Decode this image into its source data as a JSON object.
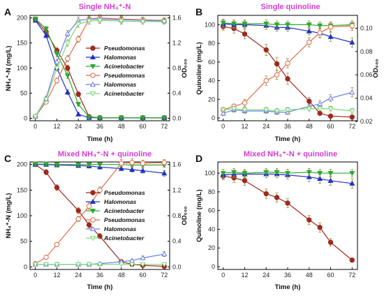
{
  "colors": {
    "pseudomonas": "#a0281e",
    "halomonas": "#1f32c8",
    "acinetobacter": "#2ea82e",
    "pseudomonas_od": "#e06a4a",
    "halomonas_od": "#6b7fe6",
    "acinetobacter_od": "#7ad878",
    "title": "#d63ad6",
    "error_bar": "#9a8a3a"
  },
  "chart_data": [
    {
      "panel": "A",
      "type": "line",
      "title": "Single NH₄⁺-N",
      "xlabel": "Time (h)",
      "ylabel": "NH₄⁺-N (mg/L)",
      "y2label": "OD₆₀₀",
      "xlim": [
        -3,
        75
      ],
      "ylim": [
        -5,
        205
      ],
      "y2lim": [
        -0.04,
        1.64
      ],
      "xticks": [
        0,
        12,
        24,
        36,
        48,
        60,
        72
      ],
      "yticks": [
        0,
        50,
        100,
        150,
        200
      ],
      "y2ticks": [
        0.0,
        0.4,
        0.8,
        1.2,
        1.6
      ],
      "legend_position": "right",
      "series": [
        {
          "name": "Pseudomonas",
          "axis": "left",
          "marker": "circle",
          "filled": true,
          "color": "pseudomonas",
          "x": [
            0,
            6,
            12,
            18,
            24,
            30,
            36,
            48,
            60,
            72
          ],
          "y": [
            197,
            172,
            135,
            100,
            48,
            3,
            1,
            1,
            1,
            1
          ],
          "err": [
            4,
            5,
            6,
            6,
            5,
            2,
            1,
            1,
            1,
            1
          ]
        },
        {
          "name": "Halomonas",
          "axis": "left",
          "marker": "triangle-up",
          "filled": true,
          "color": "halomonas",
          "x": [
            0,
            6,
            12,
            18,
            24,
            30,
            36,
            48,
            60,
            72
          ],
          "y": [
            195,
            165,
            100,
            52,
            8,
            1,
            1,
            1,
            1,
            1
          ],
          "err": [
            4,
            5,
            6,
            5,
            3,
            1,
            1,
            1,
            1,
            1
          ]
        },
        {
          "name": "Acinetobacter",
          "axis": "left",
          "marker": "triangle-down",
          "filled": true,
          "color": "acinetobacter",
          "x": [
            0,
            6,
            12,
            18,
            24,
            30,
            36,
            48,
            60,
            72
          ],
          "y": [
            198,
            178,
            128,
            85,
            28,
            2,
            1,
            1,
            1,
            1
          ],
          "err": [
            4,
            5,
            6,
            6,
            4,
            1,
            1,
            1,
            1,
            1
          ]
        },
        {
          "name": "Pseudomonas",
          "axis": "right",
          "marker": "circle",
          "filled": false,
          "color": "pseudomonas_od",
          "x": [
            0,
            6,
            12,
            18,
            24,
            30,
            36,
            48,
            60,
            72
          ],
          "y": [
            0.03,
            0.26,
            0.6,
            0.95,
            1.26,
            1.58,
            1.6,
            1.58,
            1.57,
            1.56
          ],
          "err": [
            0.01,
            0.03,
            0.04,
            0.05,
            0.05,
            0.05,
            0.05,
            0.05,
            0.04,
            0.04
          ]
        },
        {
          "name": "Halomonas",
          "axis": "right",
          "marker": "triangle-up",
          "filled": false,
          "color": "halomonas_od",
          "x": [
            0,
            6,
            12,
            18,
            24,
            30,
            36,
            48,
            60,
            72
          ],
          "y": [
            0.03,
            0.32,
            0.9,
            1.35,
            1.56,
            1.58,
            1.58,
            1.57,
            1.56,
            1.55
          ],
          "err": [
            0.01,
            0.03,
            0.04,
            0.05,
            0.05,
            0.05,
            0.05,
            0.05,
            0.04,
            0.04
          ]
        },
        {
          "name": "Acinetobacter",
          "axis": "right",
          "marker": "triangle-down",
          "filled": false,
          "color": "acinetobacter_od",
          "x": [
            0,
            6,
            12,
            18,
            24,
            30,
            36,
            48,
            60,
            72
          ],
          "y": [
            0.03,
            0.3,
            0.8,
            1.2,
            1.5,
            1.55,
            1.56,
            1.55,
            1.54,
            1.54
          ],
          "err": [
            0.01,
            0.03,
            0.04,
            0.05,
            0.05,
            0.05,
            0.05,
            0.05,
            0.04,
            0.04
          ]
        }
      ]
    },
    {
      "panel": "B",
      "type": "line",
      "title": "Single quinoline",
      "xlabel": "Time (h)",
      "ylabel": "Quinoline (mg/L)",
      "y2label": "OD₆₀₀",
      "xlim": [
        -3,
        75
      ],
      "ylim": [
        -3,
        110
      ],
      "y2lim": [
        0.0206,
        0.111
      ],
      "xticks": [
        0,
        12,
        24,
        36,
        48,
        60,
        72
      ],
      "yticks": [
        0,
        20,
        40,
        60,
        80,
        100
      ],
      "y2ticks": [
        0.02,
        0.04,
        0.06,
        0.08,
        0.1
      ],
      "legend_position": "none",
      "series": [
        {
          "name": "Pseudomonas",
          "axis": "left",
          "marker": "circle",
          "filled": true,
          "color": "pseudomonas",
          "x": [
            0,
            6,
            12,
            24,
            30,
            36,
            48,
            54,
            60,
            72
          ],
          "y": [
            98,
            96,
            90,
            73,
            58,
            42,
            18,
            5,
            2,
            1
          ],
          "err": [
            4,
            5,
            5,
            6,
            7,
            6,
            4,
            2,
            1,
            1
          ]
        },
        {
          "name": "Halomonas",
          "axis": "left",
          "marker": "triangle-up",
          "filled": true,
          "color": "halomonas",
          "x": [
            0,
            6,
            12,
            24,
            30,
            36,
            48,
            54,
            60,
            72
          ],
          "y": [
            101,
            100,
            100,
            99,
            97,
            97,
            93,
            91,
            87,
            81
          ],
          "err": [
            4,
            4,
            4,
            4,
            4,
            4,
            4,
            5,
            5,
            5
          ]
        },
        {
          "name": "Acinetobacter",
          "axis": "left",
          "marker": "triangle-down",
          "filled": true,
          "color": "acinetobacter",
          "x": [
            0,
            6,
            12,
            24,
            30,
            36,
            48,
            54,
            60,
            72
          ],
          "y": [
            102,
            101,
            101,
            101,
            100,
            100,
            100,
            99,
            99,
            100
          ],
          "err": [
            4,
            4,
            4,
            4,
            4,
            4,
            4,
            4,
            4,
            4
          ]
        },
        {
          "name": "Pseudomonas",
          "axis": "right",
          "marker": "circle",
          "filled": false,
          "color": "pseudomonas_od",
          "x": [
            0,
            6,
            12,
            24,
            30,
            36,
            48,
            54,
            60,
            72
          ],
          "y": [
            0.03,
            0.033,
            0.036,
            0.055,
            0.06,
            0.07,
            0.088,
            0.096,
            0.101,
            0.102
          ],
          "err": [
            0.002,
            0.002,
            0.003,
            0.004,
            0.004,
            0.004,
            0.004,
            0.004,
            0.004,
            0.004
          ]
        },
        {
          "name": "Halomonas",
          "axis": "right",
          "marker": "triangle-up",
          "filled": false,
          "color": "halomonas_od",
          "x": [
            0,
            6,
            12,
            24,
            30,
            36,
            48,
            54,
            60,
            72
          ],
          "y": [
            0.027,
            0.03,
            0.029,
            0.029,
            0.028,
            0.028,
            0.033,
            0.035,
            0.04,
            0.045
          ],
          "err": [
            0.002,
            0.002,
            0.002,
            0.002,
            0.002,
            0.002,
            0.002,
            0.003,
            0.003,
            0.004
          ]
        },
        {
          "name": "Acinetobacter",
          "axis": "right",
          "marker": "triangle-down",
          "filled": false,
          "color": "acinetobacter_od",
          "x": [
            0,
            6,
            12,
            24,
            30,
            36,
            48,
            54,
            60,
            72
          ],
          "y": [
            0.03,
            0.031,
            0.03,
            0.03,
            0.029,
            0.03,
            0.031,
            0.031,
            0.031,
            0.029
          ],
          "err": [
            0.002,
            0.002,
            0.002,
            0.002,
            0.002,
            0.002,
            0.002,
            0.002,
            0.002,
            0.002
          ]
        }
      ]
    },
    {
      "panel": "C",
      "type": "line",
      "title": "Mixed NH₄⁺-N + quinoline",
      "xlabel": "Time (h)",
      "ylabel": "NH₄⁺-N (mg/L)",
      "y2label": "OD₆₀₀",
      "xlim": [
        -3,
        75
      ],
      "ylim": [
        -5,
        205
      ],
      "y2lim": [
        -0.04,
        1.64
      ],
      "xticks": [
        0,
        12,
        24,
        36,
        48,
        60,
        72
      ],
      "yticks": [
        0,
        50,
        100,
        150,
        200
      ],
      "y2ticks": [
        0.0,
        0.4,
        0.8,
        1.2,
        1.6
      ],
      "legend_position": "right",
      "series": [
        {
          "name": "Pseudomonas",
          "axis": "left",
          "marker": "circle",
          "filled": true,
          "color": "pseudomonas",
          "x": [
            0,
            6,
            12,
            24,
            30,
            36,
            48,
            54,
            60,
            72
          ],
          "y": [
            200,
            185,
            155,
            110,
            82,
            60,
            10,
            5,
            3,
            1
          ],
          "err": [
            4,
            5,
            6,
            6,
            6,
            5,
            3,
            2,
            1,
            1
          ]
        },
        {
          "name": "Halomonas",
          "axis": "left",
          "marker": "triangle-up",
          "filled": true,
          "color": "halomonas",
          "x": [
            0,
            6,
            12,
            24,
            30,
            36,
            48,
            54,
            60,
            72
          ],
          "y": [
            200,
            200,
            199,
            198,
            197,
            195,
            192,
            190,
            188,
            183
          ],
          "err": [
            4,
            4,
            4,
            4,
            4,
            4,
            4,
            5,
            5,
            6
          ]
        },
        {
          "name": "Acinetobacter",
          "axis": "left",
          "marker": "triangle-down",
          "filled": true,
          "color": "acinetobacter",
          "x": [
            0,
            6,
            12,
            24,
            30,
            36,
            48,
            54,
            60,
            72
          ],
          "y": [
            201,
            201,
            200,
            200,
            200,
            200,
            200,
            199,
            199,
            199
          ],
          "err": [
            4,
            4,
            4,
            4,
            4,
            4,
            4,
            4,
            4,
            4
          ]
        },
        {
          "name": "Pseudomonas",
          "axis": "right",
          "marker": "circle",
          "filled": false,
          "color": "pseudomonas_od",
          "x": [
            0,
            6,
            12,
            24,
            30,
            36,
            48,
            54,
            60,
            72
          ],
          "y": [
            0.05,
            0.15,
            0.35,
            0.75,
            0.95,
            1.2,
            1.62,
            1.63,
            1.62,
            1.63
          ],
          "err": [
            0.01,
            0.02,
            0.03,
            0.04,
            0.05,
            0.05,
            0.06,
            0.06,
            0.05,
            0.05
          ]
        },
        {
          "name": "Halomonas",
          "axis": "right",
          "marker": "triangle-up",
          "filled": false,
          "color": "halomonas_od",
          "x": [
            0,
            6,
            12,
            24,
            30,
            36,
            48,
            54,
            60,
            72
          ],
          "y": [
            0.04,
            0.04,
            0.04,
            0.04,
            0.04,
            0.05,
            0.08,
            0.1,
            0.14,
            0.2
          ],
          "err": [
            0.01,
            0.01,
            0.01,
            0.01,
            0.01,
            0.01,
            0.02,
            0.02,
            0.03,
            0.04
          ]
        },
        {
          "name": "Acinetobacter",
          "axis": "right",
          "marker": "triangle-down",
          "filled": false,
          "color": "acinetobacter_od",
          "x": [
            0,
            6,
            12,
            24,
            30,
            36,
            48,
            54,
            60,
            72
          ],
          "y": [
            0.04,
            0.04,
            0.04,
            0.04,
            0.04,
            0.04,
            0.04,
            0.04,
            0.04,
            0.04
          ],
          "err": [
            0.01,
            0.01,
            0.01,
            0.01,
            0.01,
            0.01,
            0.01,
            0.01,
            0.01,
            0.01
          ]
        }
      ]
    },
    {
      "panel": "D",
      "type": "line",
      "title": "Mixed NH₄⁺-N + quinoline",
      "xlabel": "Time (h)",
      "ylabel": "Quinoline (mg/L)",
      "xlim": [
        -3,
        75
      ],
      "ylim": [
        -3,
        112
      ],
      "xticks": [
        0,
        12,
        24,
        36,
        48,
        60,
        72
      ],
      "yticks": [
        0,
        20,
        40,
        60,
        80,
        100
      ],
      "legend_position": "none",
      "series": [
        {
          "name": "Pseudomonas",
          "axis": "left",
          "marker": "circle",
          "filled": true,
          "color": "pseudomonas",
          "x": [
            0,
            6,
            12,
            24,
            30,
            36,
            48,
            54,
            60,
            72
          ],
          "y": [
            97,
            95,
            92,
            78,
            74,
            68,
            50,
            42,
            26,
            7
          ],
          "err": [
            4,
            5,
            5,
            5,
            5,
            5,
            5,
            5,
            4,
            2
          ]
        },
        {
          "name": "Halomonas",
          "axis": "left",
          "marker": "triangle-up",
          "filled": true,
          "color": "halomonas",
          "x": [
            0,
            6,
            12,
            24,
            30,
            36,
            48,
            54,
            60,
            72
          ],
          "y": [
            98,
            99,
            99,
            99,
            99,
            98,
            96,
            94,
            92,
            89
          ],
          "err": [
            4,
            4,
            4,
            4,
            4,
            4,
            5,
            5,
            5,
            5
          ]
        },
        {
          "name": "Acinetobacter",
          "axis": "left",
          "marker": "triangle-down",
          "filled": true,
          "color": "acinetobacter",
          "x": [
            0,
            6,
            12,
            24,
            30,
            36,
            48,
            54,
            60,
            72
          ],
          "y": [
            100,
            101,
            100,
            101,
            101,
            100,
            101,
            100,
            100,
            100
          ],
          "err": [
            4,
            4,
            4,
            4,
            4,
            4,
            4,
            4,
            4,
            4
          ]
        }
      ]
    }
  ]
}
